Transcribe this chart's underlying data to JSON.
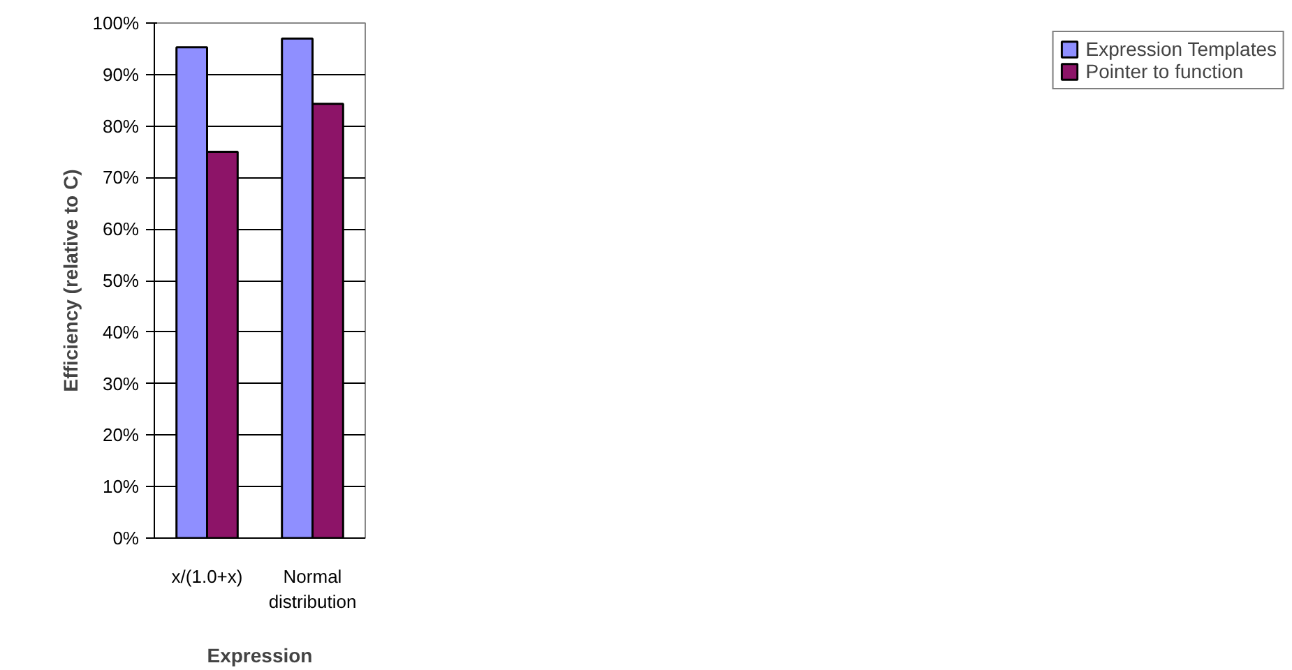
{
  "chart_data": {
    "type": "bar",
    "xlabel": "Expression",
    "ylabel": "Efficiency (relative to C)",
    "categories": [
      "x/(1.0+x)",
      "Normal\ndistribution"
    ],
    "series": [
      {
        "name": "Expression Templates",
        "color": "#8f8fff",
        "values": [
          95.3,
          97.0
        ]
      },
      {
        "name": "Pointer to function",
        "color": "#8d1468",
        "values": [
          75.0,
          84.3
        ]
      }
    ],
    "ylim": [
      0,
      100
    ],
    "yticks": [
      {
        "value": 0,
        "label": "0%"
      },
      {
        "value": 10,
        "label": "10%"
      },
      {
        "value": 20,
        "label": "20%"
      },
      {
        "value": 30,
        "label": "30%"
      },
      {
        "value": 40,
        "label": "40%"
      },
      {
        "value": 50,
        "label": "50%"
      },
      {
        "value": 60,
        "label": "60%"
      },
      {
        "value": 70,
        "label": "70%"
      },
      {
        "value": 80,
        "label": "80%"
      },
      {
        "value": 90,
        "label": "90%"
      },
      {
        "value": 100,
        "label": "100%"
      }
    ],
    "grid": "y",
    "legend": "right"
  }
}
